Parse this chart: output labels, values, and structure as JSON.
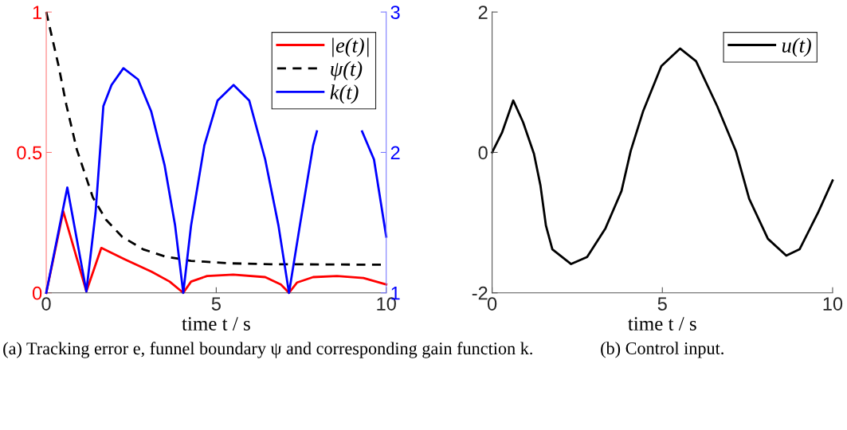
{
  "chart_data": [
    {
      "type": "line",
      "xlabel": "time t / s",
      "xlim": [
        0,
        10
      ],
      "xticks": [
        0,
        5,
        10
      ],
      "ylim": [
        0,
        1
      ],
      "yticks": [
        0,
        0.5,
        1
      ],
      "y2lim": [
        1,
        3
      ],
      "y2ticks": [
        1,
        2,
        3
      ],
      "grid": false,
      "legend": "top right",
      "marker": "none",
      "annotations": [
        "(a) Tracking error e, funnel boundary ψ and corresponding gain function k."
      ],
      "series": [
        {
          "name": "|e(t)|",
          "color": "#ff0000",
          "line_style": "solid",
          "x": [
            0,
            0.5,
            1.18,
            1.62,
            2.3,
            3.1,
            3.63,
            4.03,
            4.26,
            4.73,
            5.5,
            6.44,
            6.9,
            7.14,
            7.38,
            7.85,
            8.55,
            9.33,
            10
          ],
          "values": [
            0,
            0.29,
            0.005,
            0.16,
            0.12,
            0.075,
            0.04,
            0,
            0.04,
            0.06,
            0.065,
            0.056,
            0.03,
            0,
            0.037,
            0.056,
            0.06,
            0.053,
            0.03
          ]
        },
        {
          "name": "ψ(t)",
          "color": "#000000",
          "line_style": "dashed",
          "x": [
            0,
            0.36,
            0.59,
            0.9,
            1.37,
            1.76,
            2.23,
            2.85,
            3.48,
            4.26,
            5.43,
            6.6,
            10
          ],
          "values": [
            1,
            0.81,
            0.67,
            0.51,
            0.34,
            0.26,
            0.2,
            0.155,
            0.13,
            0.114,
            0.105,
            0.102,
            0.1
          ]
        },
        {
          "name": "k(t)",
          "color": "#0000ff",
          "line_style": "solid",
          "axis": "y2",
          "x": [
            0,
            0.62,
            1.18,
            1.45,
            1.68,
            1.92,
            2.27,
            2.7,
            3.09,
            3.48,
            3.79,
            4.03,
            4.26,
            4.65,
            5.04,
            5.51,
            5.97,
            6.44,
            6.83,
            7.14,
            7.46,
            7.85,
            7.96,
            8.6,
            9.29,
            9.64,
            10
          ],
          "values": [
            1,
            1.75,
            1.01,
            1.57,
            2.33,
            2.48,
            2.6,
            2.52,
            2.29,
            1.91,
            1.48,
            1,
            1.48,
            2.05,
            2.37,
            2.48,
            2.37,
            1.95,
            1.48,
            1,
            1.48,
            2.05,
            2.15,
            null,
            2.15,
            1.95,
            1.4
          ]
        }
      ]
    },
    {
      "type": "line",
      "xlabel": "time t / s",
      "xlim": [
        0,
        10
      ],
      "xticks": [
        0,
        5,
        10
      ],
      "ylim": [
        -2,
        2
      ],
      "yticks": [
        {
          "value": -2,
          "label": "-2"
        },
        0,
        2
      ],
      "grid": false,
      "legend": "top right",
      "marker": "none",
      "annotations": [
        "(b) Control input."
      ],
      "series": [
        {
          "name": "u(t)",
          "color": "#000000",
          "line_style": "solid",
          "x": [
            0,
            0.29,
            0.62,
            0.91,
            1.23,
            1.42,
            1.58,
            1.77,
            2.32,
            2.79,
            3.33,
            3.8,
            4.07,
            4.43,
            4.97,
            5.52,
            5.99,
            6.61,
            7.16,
            7.55,
            8.1,
            8.64,
            9.03,
            9.58,
            10
          ],
          "values": [
            0,
            0.28,
            0.74,
            0.43,
            -0.02,
            -0.47,
            -1.04,
            -1.38,
            -1.59,
            -1.49,
            -1.08,
            -0.55,
            0.02,
            0.58,
            1.23,
            1.48,
            1.3,
            0.66,
            0.02,
            -0.66,
            -1.23,
            -1.47,
            -1.38,
            -0.85,
            -0.4
          ]
        }
      ]
    }
  ]
}
